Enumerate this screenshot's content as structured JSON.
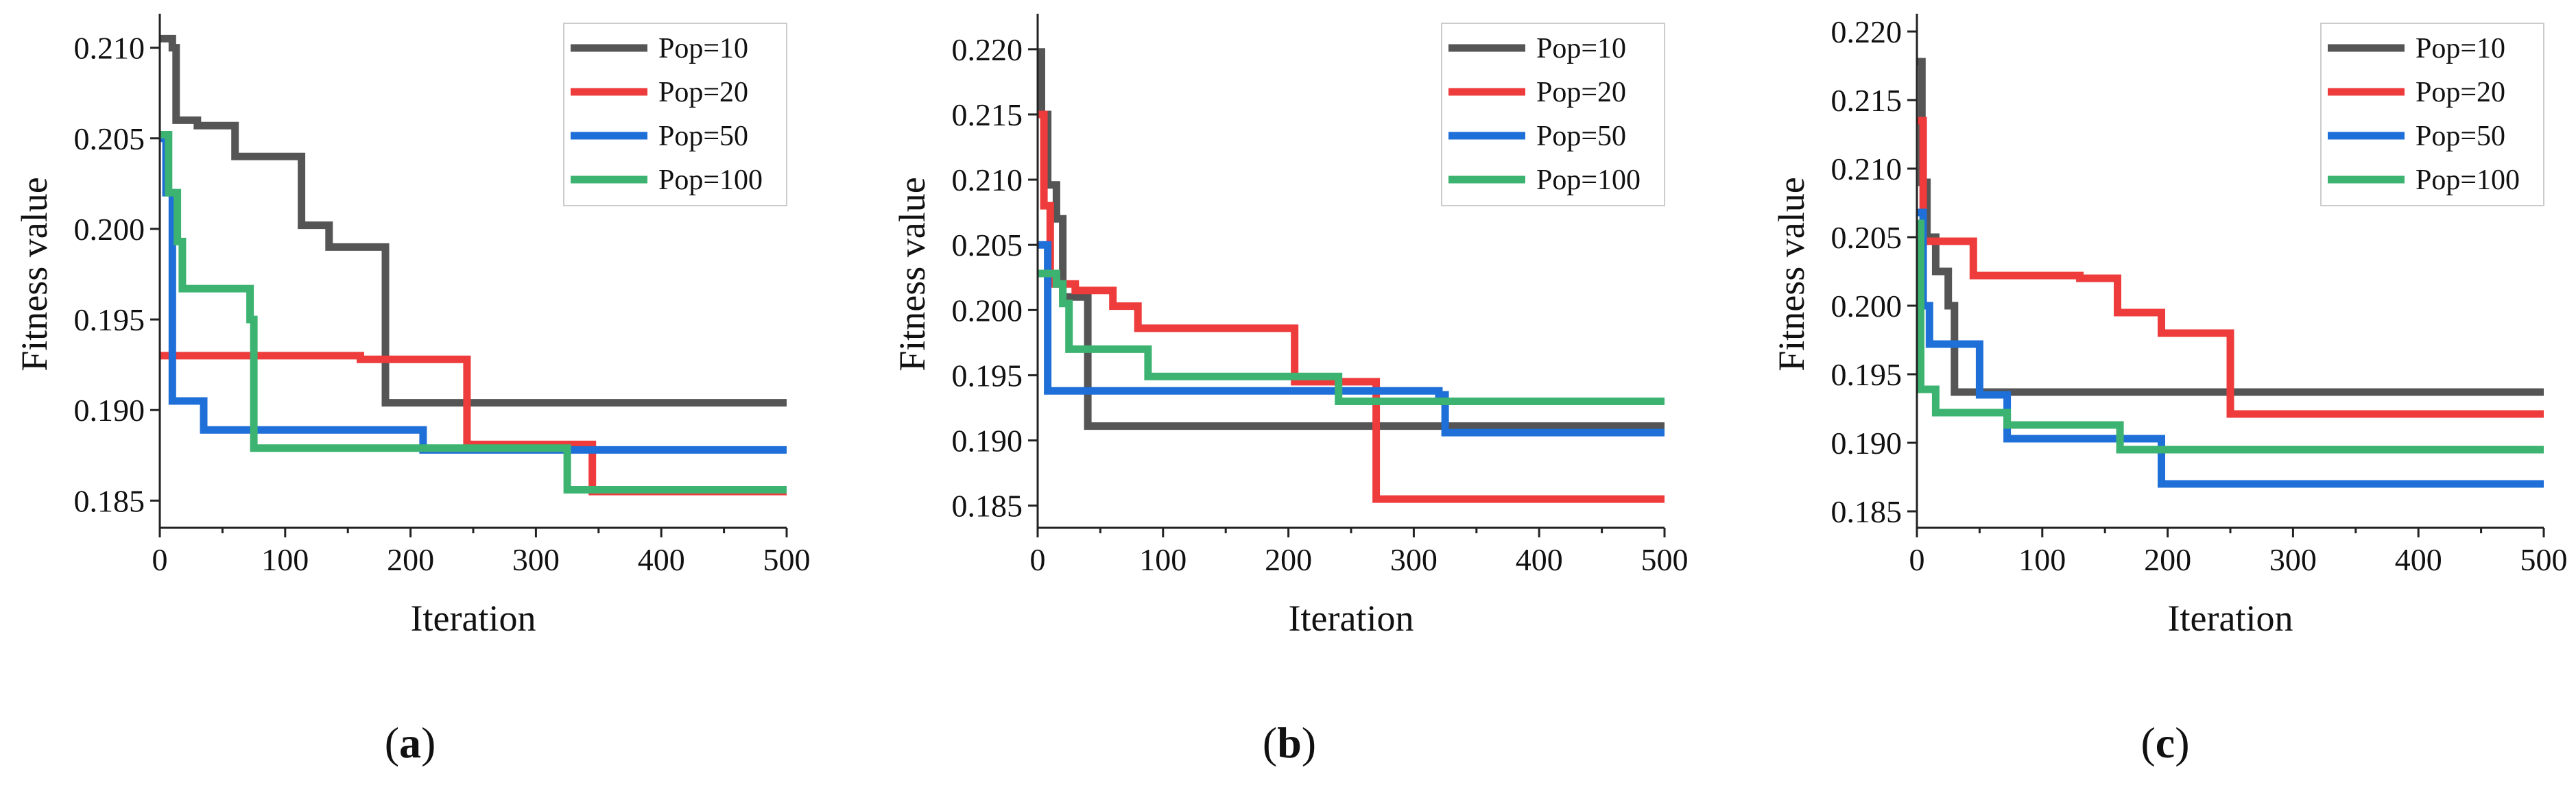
{
  "chart_data": [
    {
      "type": "line",
      "panel_label": "a",
      "xlabel": "Iteration",
      "ylabel": "Fitness value",
      "xlim": [
        0,
        500
      ],
      "ylim": [
        0.1835,
        0.2115
      ],
      "xticks": [
        0,
        100,
        200,
        300,
        400,
        500
      ],
      "yticks": [
        0.185,
        0.19,
        0.195,
        0.2,
        0.205,
        0.21
      ],
      "legend_position": "top-right",
      "series": [
        {
          "name": "Pop=10",
          "color": "#555555",
          "points": [
            [
              0,
              0.2105
            ],
            [
              10,
              0.2105
            ],
            [
              10,
              0.21
            ],
            [
              13,
              0.21
            ],
            [
              13,
              0.206
            ],
            [
              30,
              0.206
            ],
            [
              30,
              0.2057
            ],
            [
              60,
              0.2057
            ],
            [
              60,
              0.204
            ],
            [
              113,
              0.204
            ],
            [
              113,
              0.2002
            ],
            [
              135,
              0.2002
            ],
            [
              135,
              0.199
            ],
            [
              180,
              0.199
            ],
            [
              180,
              0.1904
            ],
            [
              500,
              0.1904
            ]
          ]
        },
        {
          "name": "Pop=20",
          "color": "#ee3b3b",
          "points": [
            [
              0,
              0.193
            ],
            [
              160,
              0.193
            ],
            [
              160,
              0.1928
            ],
            [
              245,
              0.1928
            ],
            [
              245,
              0.1881
            ],
            [
              345,
              0.1881
            ],
            [
              345,
              0.1855
            ],
            [
              500,
              0.1855
            ]
          ]
        },
        {
          "name": "Pop=50",
          "color": "#1f6fd8",
          "points": [
            [
              0,
              0.205
            ],
            [
              5,
              0.205
            ],
            [
              5,
              0.202
            ],
            [
              10,
              0.202
            ],
            [
              10,
              0.1905
            ],
            [
              35,
              0.1905
            ],
            [
              35,
              0.1889
            ],
            [
              210,
              0.1889
            ],
            [
              210,
              0.1878
            ],
            [
              500,
              0.1878
            ]
          ]
        },
        {
          "name": "Pop=100",
          "color": "#3cb371",
          "points": [
            [
              0,
              0.2052
            ],
            [
              7,
              0.2052
            ],
            [
              7,
              0.202
            ],
            [
              14,
              0.202
            ],
            [
              14,
              0.1993
            ],
            [
              18,
              0.1993
            ],
            [
              18,
              0.1967
            ],
            [
              72,
              0.1967
            ],
            [
              72,
              0.195
            ],
            [
              75,
              0.195
            ],
            [
              75,
              0.1879
            ],
            [
              325,
              0.1879
            ],
            [
              325,
              0.1856
            ],
            [
              500,
              0.1856
            ]
          ]
        }
      ]
    },
    {
      "type": "line",
      "panel_label": "b",
      "xlabel": "Iteration",
      "ylabel": "Fitness value",
      "xlim": [
        0,
        500
      ],
      "ylim": [
        0.1833,
        0.2222
      ],
      "xticks": [
        0,
        100,
        200,
        300,
        400,
        500
      ],
      "yticks": [
        0.185,
        0.19,
        0.195,
        0.2,
        0.205,
        0.21,
        0.215,
        0.22
      ],
      "legend_position": "top-right",
      "series": [
        {
          "name": "Pop=10",
          "color": "#555555",
          "points": [
            [
              0,
              0.2198
            ],
            [
              3,
              0.2198
            ],
            [
              3,
              0.215
            ],
            [
              8,
              0.215
            ],
            [
              8,
              0.2096
            ],
            [
              15,
              0.2096
            ],
            [
              15,
              0.207
            ],
            [
              20,
              0.207
            ],
            [
              20,
              0.201
            ],
            [
              40,
              0.201
            ],
            [
              40,
              0.1911
            ],
            [
              500,
              0.1911
            ]
          ]
        },
        {
          "name": "Pop=20",
          "color": "#ee3b3b",
          "points": [
            [
              0,
              0.215
            ],
            [
              5,
              0.215
            ],
            [
              5,
              0.208
            ],
            [
              10,
              0.208
            ],
            [
              10,
              0.202
            ],
            [
              30,
              0.202
            ],
            [
              30,
              0.2015
            ],
            [
              60,
              0.2015
            ],
            [
              60,
              0.2003
            ],
            [
              80,
              0.2003
            ],
            [
              80,
              0.1986
            ],
            [
              205,
              0.1986
            ],
            [
              205,
              0.1945
            ],
            [
              270,
              0.1945
            ],
            [
              270,
              0.1855
            ],
            [
              500,
              0.1855
            ]
          ]
        },
        {
          "name": "Pop=50",
          "color": "#1f6fd8",
          "points": [
            [
              0,
              0.205
            ],
            [
              8,
              0.205
            ],
            [
              8,
              0.1938
            ],
            [
              320,
              0.1938
            ],
            [
              320,
              0.1935
            ],
            [
              325,
              0.1935
            ],
            [
              325,
              0.1906
            ],
            [
              500,
              0.1906
            ]
          ]
        },
        {
          "name": "Pop=100",
          "color": "#3cb371",
          "points": [
            [
              0,
              0.2028
            ],
            [
              15,
              0.2028
            ],
            [
              15,
              0.202
            ],
            [
              20,
              0.202
            ],
            [
              20,
              0.2005
            ],
            [
              25,
              0.2005
            ],
            [
              25,
              0.197
            ],
            [
              88,
              0.197
            ],
            [
              88,
              0.1949
            ],
            [
              240,
              0.1949
            ],
            [
              240,
              0.193
            ],
            [
              500,
              0.193
            ]
          ]
        }
      ]
    },
    {
      "type": "line",
      "panel_label": "c",
      "xlabel": "Iteration",
      "ylabel": "Fitness value",
      "xlim": [
        0,
        500
      ],
      "ylim": [
        0.1838,
        0.2208
      ],
      "xticks": [
        0,
        100,
        200,
        300,
        400,
        500
      ],
      "yticks": [
        0.185,
        0.19,
        0.195,
        0.2,
        0.205,
        0.21,
        0.215,
        0.22
      ],
      "legend_position": "top-right",
      "series": [
        {
          "name": "Pop=10",
          "color": "#555555",
          "points": [
            [
              0,
              0.2178
            ],
            [
              4,
              0.2178
            ],
            [
              4,
              0.209
            ],
            [
              8,
              0.209
            ],
            [
              8,
              0.205
            ],
            [
              15,
              0.205
            ],
            [
              15,
              0.2025
            ],
            [
              25,
              0.2025
            ],
            [
              25,
              0.2
            ],
            [
              30,
              0.2
            ],
            [
              30,
              0.1937
            ],
            [
              500,
              0.1937
            ]
          ]
        },
        {
          "name": "Pop=20",
          "color": "#ee3b3b",
          "points": [
            [
              0,
              0.2135
            ],
            [
              5,
              0.2135
            ],
            [
              5,
              0.2047
            ],
            [
              45,
              0.2047
            ],
            [
              45,
              0.2022
            ],
            [
              130,
              0.2022
            ],
            [
              130,
              0.202
            ],
            [
              160,
              0.202
            ],
            [
              160,
              0.1995
            ],
            [
              195,
              0.1995
            ],
            [
              195,
              0.198
            ],
            [
              250,
              0.198
            ],
            [
              250,
              0.1921
            ],
            [
              500,
              0.1921
            ]
          ]
        },
        {
          "name": "Pop=50",
          "color": "#1f6fd8",
          "points": [
            [
              0,
              0.2068
            ],
            [
              5,
              0.2068
            ],
            [
              5,
              0.2
            ],
            [
              10,
              0.2
            ],
            [
              10,
              0.1972
            ],
            [
              50,
              0.1972
            ],
            [
              50,
              0.1935
            ],
            [
              72,
              0.1935
            ],
            [
              72,
              0.1903
            ],
            [
              195,
              0.1903
            ],
            [
              195,
              0.187
            ],
            [
              500,
              0.187
            ]
          ]
        },
        {
          "name": "Pop=100",
          "color": "#3cb371",
          "points": [
            [
              0,
              0.206
            ],
            [
              3,
              0.206
            ],
            [
              3,
              0.1939
            ],
            [
              15,
              0.1939
            ],
            [
              15,
              0.1922
            ],
            [
              72,
              0.1922
            ],
            [
              72,
              0.1913
            ],
            [
              162,
              0.1913
            ],
            [
              162,
              0.1895
            ],
            [
              500,
              0.1895
            ]
          ]
        }
      ]
    }
  ]
}
